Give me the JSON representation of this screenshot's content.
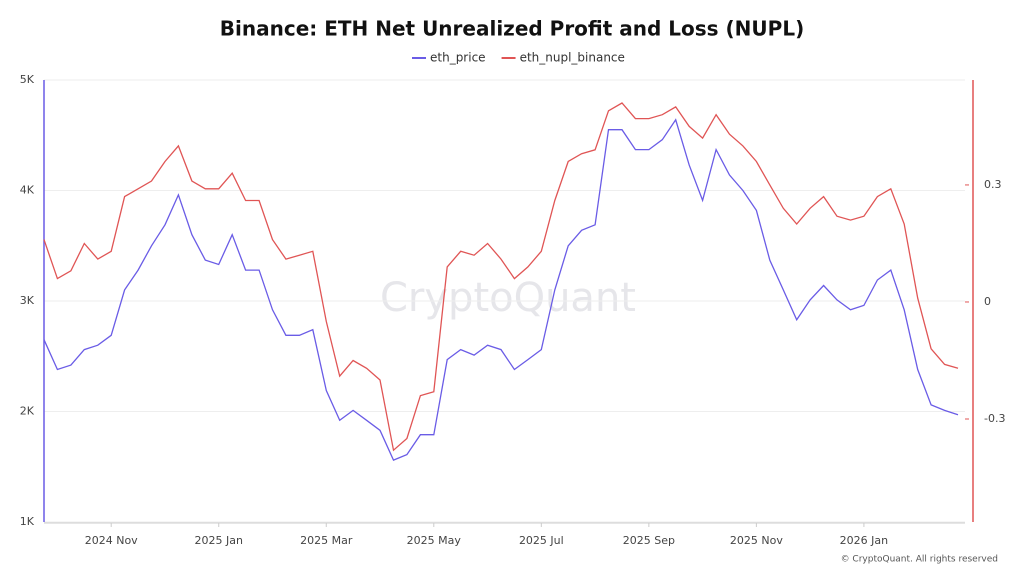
{
  "chart_data": {
    "type": "line",
    "title": "Binance: ETH Net Unrealized Profit and Loss (NUPL)",
    "watermark": "CryptoQuant",
    "credit": "© CryptoQuant. All rights reserved",
    "categories": [
      null,
      null,
      null,
      null,
      null,
      "2024 Nov",
      null,
      null,
      null,
      null,
      null,
      null,
      null,
      "2025 Jan",
      null,
      null,
      null,
      null,
      null,
      null,
      null,
      "2025 Mar",
      null,
      null,
      null,
      null,
      null,
      null,
      null,
      "2025 May",
      null,
      null,
      null,
      null,
      null,
      null,
      null,
      "2025 Jul",
      null,
      null,
      null,
      null,
      null,
      null,
      null,
      "2025 Sep",
      null,
      null,
      null,
      null,
      null,
      null,
      null,
      "2025 Nov",
      null,
      null,
      null,
      null,
      null,
      null,
      null,
      "2026 Jan",
      null,
      null,
      null,
      null,
      null,
      null,
      null
    ],
    "series": [
      {
        "name": "eth_price",
        "color": "#6a5ce6",
        "axis": "y",
        "values": [
          2650,
          2380,
          2420,
          2560,
          2600,
          2690,
          3100,
          3280,
          3500,
          3690,
          3960,
          3600,
          3370,
          3330,
          3600,
          3280,
          3280,
          2920,
          2690,
          2690,
          2740,
          2190,
          1920,
          2010,
          1920,
          1830,
          1560,
          1610,
          1790,
          1790,
          2470,
          2560,
          2510,
          2600,
          2560,
          2380,
          2470,
          2560,
          3100,
          3500,
          3640,
          3690,
          4550,
          4550,
          4370,
          4370,
          4460,
          4640,
          4230,
          3910,
          4370,
          4140,
          4000,
          3820,
          3370,
          3100,
          2830,
          3010,
          3140,
          3010,
          2920,
          2960,
          3190,
          3280,
          2920,
          2380,
          2060,
          2010,
          1970
        ]
      },
      {
        "name": "eth_nupl_binance",
        "color": "#e05555",
        "axis": "y2",
        "values": [
          0.16,
          0.06,
          0.08,
          0.15,
          0.11,
          0.13,
          0.27,
          0.29,
          0.31,
          0.36,
          0.4,
          0.31,
          0.29,
          0.29,
          0.33,
          0.26,
          0.26,
          0.16,
          0.11,
          0.12,
          0.13,
          -0.05,
          -0.19,
          -0.15,
          -0.17,
          -0.2,
          -0.38,
          -0.35,
          -0.24,
          -0.23,
          0.09,
          0.13,
          0.12,
          0.15,
          0.11,
          0.06,
          0.09,
          0.13,
          0.26,
          0.36,
          0.38,
          0.39,
          0.49,
          0.51,
          0.47,
          0.47,
          0.48,
          0.5,
          0.45,
          0.42,
          0.48,
          0.43,
          0.4,
          0.36,
          0.3,
          0.24,
          0.2,
          0.24,
          0.27,
          0.22,
          0.21,
          0.22,
          0.27,
          0.29,
          0.2,
          0.01,
          -0.12,
          -0.16,
          -0.17
        ]
      }
    ],
    "ylim": [
      1000,
      5000
    ],
    "yticks": [
      {
        "value": 1000,
        "label": "1K"
      },
      {
        "value": 2000,
        "label": "2K"
      },
      {
        "value": 3000,
        "label": "3K"
      },
      {
        "value": 4000,
        "label": "4K"
      },
      {
        "value": 5000,
        "label": "5K"
      }
    ],
    "y2lim": [
      -0.564,
      0.569
    ],
    "y2ticks": [
      -0.3,
      0,
      0.3
    ],
    "grid": true
  }
}
